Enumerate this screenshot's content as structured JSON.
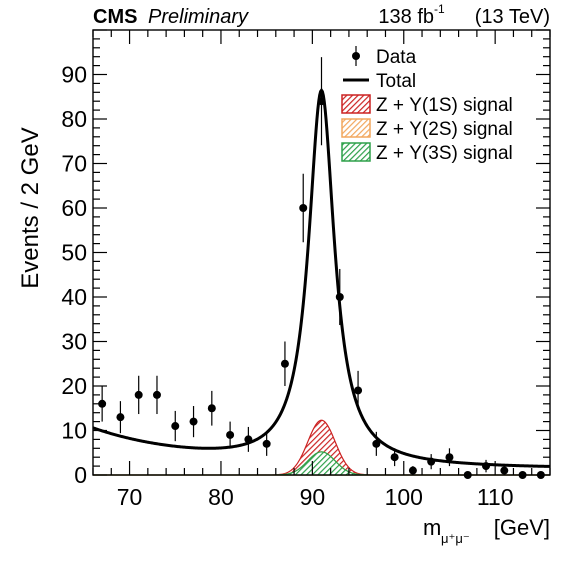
{
  "header": {
    "experiment": "CMS",
    "status": "Preliminary",
    "lumi_value": "138 fb",
    "lumi_exp": "-1",
    "energy": "(13 TeV)"
  },
  "chart_data": {
    "type": "scatter",
    "xlabel": "m",
    "xlabel_sub": "μ⁺μ⁻",
    "xlabel_unit": "[GeV]",
    "ylabel": "Events / 2 GeV",
    "xlim": [
      66,
      116
    ],
    "ylim": [
      0,
      100
    ],
    "x_ticks": [
      70,
      80,
      90,
      100,
      110
    ],
    "y_ticks": [
      0,
      10,
      20,
      30,
      40,
      50,
      60,
      70,
      80,
      90
    ],
    "legend": {
      "position": "top-right",
      "entries": [
        {
          "key": "data",
          "label": "Data",
          "style": "marker"
        },
        {
          "key": "total",
          "label": "Total",
          "style": "line",
          "color": "#000000"
        },
        {
          "key": "s1",
          "label": "Z + Υ(1S) signal",
          "style": "hatch",
          "color": "#cc2222"
        },
        {
          "key": "s2",
          "label": "Z + Υ(2S) signal",
          "style": "hatch",
          "color": "#f2a75e"
        },
        {
          "key": "s3",
          "label": "Z + Υ(3S) signal",
          "style": "hatch",
          "color": "#2ea04a"
        }
      ]
    },
    "data_points": [
      {
        "x": 67,
        "y": 16,
        "err": 4
      },
      {
        "x": 69,
        "y": 13,
        "err": 3.6
      },
      {
        "x": 71,
        "y": 18,
        "err": 4.3
      },
      {
        "x": 73,
        "y": 18,
        "err": 4.3
      },
      {
        "x": 75,
        "y": 11,
        "err": 3.4
      },
      {
        "x": 77,
        "y": 12,
        "err": 3.5
      },
      {
        "x": 79,
        "y": 15,
        "err": 3.9
      },
      {
        "x": 81,
        "y": 9,
        "err": 3
      },
      {
        "x": 83,
        "y": 8,
        "err": 2.8
      },
      {
        "x": 85,
        "y": 7,
        "err": 2.7
      },
      {
        "x": 87,
        "y": 25,
        "err": 5
      },
      {
        "x": 89,
        "y": 60,
        "err": 7.7
      },
      {
        "x": 91,
        "y": 84,
        "err": 9.9
      },
      {
        "x": 93,
        "y": 40,
        "err": 6.3
      },
      {
        "x": 95,
        "y": 19,
        "err": 4.4
      },
      {
        "x": 97,
        "y": 7,
        "err": 2.7
      },
      {
        "x": 99,
        "y": 4,
        "err": 2
      },
      {
        "x": 101,
        "y": 1,
        "err": 1
      },
      {
        "x": 103,
        "y": 3,
        "err": 1.7
      },
      {
        "x": 105,
        "y": 4,
        "err": 2
      },
      {
        "x": 107,
        "y": 0,
        "err": 0
      },
      {
        "x": 109,
        "y": 2,
        "err": 1.4
      },
      {
        "x": 111,
        "y": 1,
        "err": 1
      },
      {
        "x": 113,
        "y": 0,
        "err": 0
      },
      {
        "x": 115,
        "y": 0,
        "err": 0
      }
    ],
    "model": {
      "peak_mass": 91,
      "peak_height": 84,
      "peak_halfwidth": 1.72,
      "background_amplitude": 8.8,
      "background_slope": 0.085,
      "background_pivot": 66,
      "background_tail": 1.4,
      "signal_peaks": {
        "s1": 12.3,
        "s2": 5.2,
        "s3": 5.2
      },
      "signal_sigma": 1.5
    }
  }
}
